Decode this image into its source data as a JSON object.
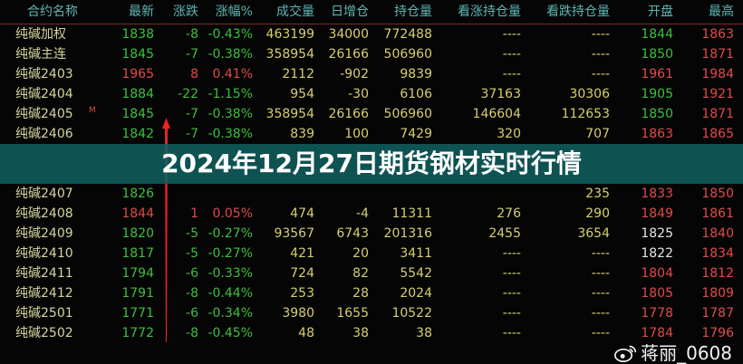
{
  "columns": [
    "合约名称",
    "最新",
    "涨跌",
    "涨幅%",
    "成交量",
    "日增仓",
    "持仓量",
    "看涨持仓量",
    "看跌持仓量",
    "开盘",
    "最高"
  ],
  "rows": [
    {
      "name": "纯碱加权",
      "mark": "",
      "last": "1838",
      "chg": "-8",
      "pct": "-0.43%",
      "vol": "463199",
      "dinc": "34000",
      "oi": "772488",
      "call": "----",
      "put": "----",
      "open": "1844",
      "high": "1863",
      "dir": "g",
      "open_dir": "g"
    },
    {
      "name": "纯碱主连",
      "mark": "",
      "last": "1845",
      "chg": "-7",
      "pct": "-0.38%",
      "vol": "358954",
      "dinc": "26166",
      "oi": "506960",
      "call": "----",
      "put": "----",
      "open": "1850",
      "high": "1871",
      "dir": "g",
      "open_dir": "g"
    },
    {
      "name": "纯碱2403",
      "mark": "",
      "last": "1965",
      "chg": "8",
      "pct": "0.41%",
      "vol": "2112",
      "dinc": "-902",
      "oi": "9839",
      "call": "----",
      "put": "----",
      "open": "1961",
      "high": "1984",
      "dir": "r",
      "open_dir": "r"
    },
    {
      "name": "纯碱2404",
      "mark": "",
      "last": "1884",
      "chg": "-22",
      "pct": "-1.15%",
      "vol": "954",
      "dinc": "-30",
      "oi": "6106",
      "call": "37163",
      "put": "30306",
      "open": "1905",
      "high": "1921",
      "dir": "g",
      "open_dir": "g"
    },
    {
      "name": "纯碱2405",
      "mark": "M",
      "last": "1845",
      "chg": "-7",
      "pct": "-0.38%",
      "vol": "358954",
      "dinc": "26166",
      "oi": "506960",
      "call": "146604",
      "put": "112653",
      "open": "1850",
      "high": "1871",
      "dir": "g",
      "open_dir": "g"
    },
    {
      "name": "纯碱2406",
      "mark": "",
      "last": "1842",
      "chg": "-7",
      "pct": "-0.38%",
      "vol": "839",
      "dinc": "100",
      "oi": "7429",
      "call": "320",
      "put": "707",
      "open": "1863",
      "high": "1865",
      "dir": "g",
      "open_dir": "r"
    },
    {
      "name": "纯碱2407",
      "mark": "",
      "last": "1826",
      "chg": "",
      "pct": "",
      "vol": "",
      "dinc": "",
      "oi": "",
      "call": "",
      "put": "235",
      "open": "1833",
      "high": "1850",
      "dir": "g",
      "open_dir": "r"
    },
    {
      "name": "纯碱2408",
      "mark": "",
      "last": "1844",
      "chg": "1",
      "pct": "0.05%",
      "vol": "474",
      "dinc": "-4",
      "oi": "11311",
      "call": "276",
      "put": "290",
      "open": "1849",
      "high": "1861",
      "dir": "r",
      "open_dir": "r"
    },
    {
      "name": "纯碱2409",
      "mark": "",
      "last": "1820",
      "chg": "-5",
      "pct": "-0.27%",
      "vol": "93567",
      "dinc": "6743",
      "oi": "201316",
      "call": "2455",
      "put": "3654",
      "open": "1825",
      "high": "1840",
      "dir": "g",
      "open_dir": "w"
    },
    {
      "name": "纯碱2410",
      "mark": "",
      "last": "1817",
      "chg": "-5",
      "pct": "-0.27%",
      "vol": "421",
      "dinc": "20",
      "oi": "3411",
      "call": "----",
      "put": "----",
      "open": "1822",
      "high": "1834",
      "dir": "g",
      "open_dir": "w"
    },
    {
      "name": "纯碱2411",
      "mark": "",
      "last": "1794",
      "chg": "-6",
      "pct": "-0.33%",
      "vol": "724",
      "dinc": "82",
      "oi": "5542",
      "call": "----",
      "put": "----",
      "open": "1804",
      "high": "1812",
      "dir": "g",
      "open_dir": "r"
    },
    {
      "name": "纯碱2412",
      "mark": "",
      "last": "1791",
      "chg": "-8",
      "pct": "-0.44%",
      "vol": "253",
      "dinc": "28",
      "oi": "2024",
      "call": "----",
      "put": "----",
      "open": "1805",
      "high": "1809",
      "dir": "g",
      "open_dir": "r"
    },
    {
      "name": "纯碱2501",
      "mark": "",
      "last": "1771",
      "chg": "-6",
      "pct": "-0.34%",
      "vol": "3980",
      "dinc": "1655",
      "oi": "10522",
      "call": "----",
      "put": "----",
      "open": "1778",
      "high": "1787",
      "dir": "g",
      "open_dir": "r"
    },
    {
      "name": "纯碱2502",
      "mark": "",
      "last": "1772",
      "chg": "-8",
      "pct": "-0.45%",
      "vol": "48",
      "dinc": "38",
      "oi": "38",
      "call": "----",
      "put": "----",
      "open": "1784",
      "high": "1796",
      "dir": "g",
      "open_dir": "r"
    }
  ],
  "banner": {
    "title": "2024年12月27日期货钢材实时行情"
  },
  "watermark": {
    "icon": "weibo-icon",
    "text": "蒋丽_0608"
  },
  "colors": {
    "up": "#e04b4b",
    "down": "#3fbf3f",
    "header": "#5fb6b4",
    "banner": "#126060"
  }
}
